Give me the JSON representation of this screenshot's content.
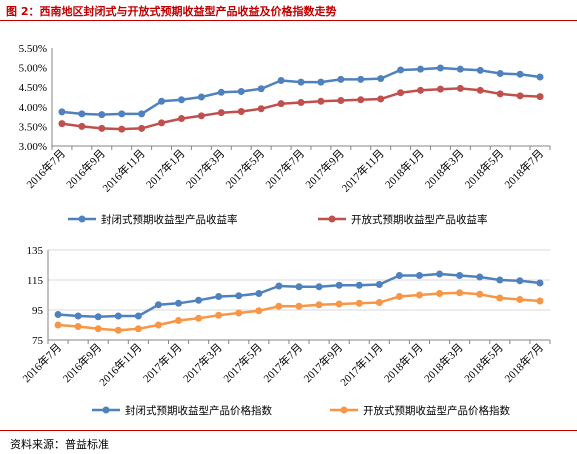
{
  "figure_title": "图 2：西南地区封闭式与开放式预期收益型产品收益及价格指数走势",
  "source": "资料来源：普益标准",
  "colors": {
    "blue": "#4f81bd",
    "red": "#c0504d",
    "orange": "#f79646",
    "rule": "#c00000"
  },
  "chart_data": [
    {
      "type": "line",
      "categories": [
        "2016年7月",
        "2016年8月",
        "2016年9月",
        "2016年10月",
        "2016年11月",
        "2016年12月",
        "2017年1月",
        "2017年2月",
        "2017年3月",
        "2017年4月",
        "2017年5月",
        "2017年6月",
        "2017年7月",
        "2017年8月",
        "2017年9月",
        "2017年10月",
        "2017年11月",
        "2017年12月",
        "2018年1月",
        "2018年2月",
        "2018年3月",
        "2018年4月",
        "2018年5月",
        "2018年6月",
        "2018年7月"
      ],
      "tick_labels": [
        "2016年7月",
        "2016年9月",
        "2016年11月",
        "2017年1月",
        "2017年3月",
        "2017年5月",
        "2017年7月",
        "2017年9月",
        "2017年11月",
        "2018年1月",
        "2018年3月",
        "2018年5月",
        "2018年7月"
      ],
      "ylim": [
        3.0,
        5.5
      ],
      "yticks": [
        "3.00%",
        "3.50%",
        "4.00%",
        "4.50%",
        "5.00%",
        "5.50%"
      ],
      "grid": false,
      "legend_position": "bottom",
      "series": [
        {
          "name": "封闭式预期收益型产品收益率",
          "color": "#4f81bd",
          "values": [
            3.87,
            3.82,
            3.8,
            3.82,
            3.82,
            4.14,
            4.18,
            4.25,
            4.37,
            4.39,
            4.46,
            4.67,
            4.63,
            4.63,
            4.7,
            4.7,
            4.72,
            4.94,
            4.96,
            4.99,
            4.96,
            4.93,
            4.85,
            4.83,
            4.76
          ]
        },
        {
          "name": "开放式预期收益型产品收益率",
          "color": "#c0504d",
          "values": [
            3.57,
            3.5,
            3.45,
            3.43,
            3.45,
            3.59,
            3.7,
            3.77,
            3.85,
            3.88,
            3.95,
            4.08,
            4.11,
            4.14,
            4.16,
            4.18,
            4.2,
            4.36,
            4.42,
            4.45,
            4.47,
            4.42,
            4.33,
            4.28,
            4.26
          ]
        }
      ]
    },
    {
      "type": "line",
      "categories": [
        "2016年7月",
        "2016年8月",
        "2016年9月",
        "2016年10月",
        "2016年11月",
        "2016年12月",
        "2017年1月",
        "2017年2月",
        "2017年3月",
        "2017年4月",
        "2017年5月",
        "2017年6月",
        "2017年7月",
        "2017年8月",
        "2017年9月",
        "2017年10月",
        "2017年11月",
        "2017年12月",
        "2018年1月",
        "2018年2月",
        "2018年3月",
        "2018年4月",
        "2018年5月",
        "2018年6月",
        "2018年7月"
      ],
      "tick_labels": [
        "2016年7月",
        "2016年9月",
        "2016年11月",
        "2017年1月",
        "2017年3月",
        "2017年5月",
        "2017年7月",
        "2017年9月",
        "2017年11月",
        "2018年1月",
        "2018年3月",
        "2018年5月",
        "2018年7月"
      ],
      "ylim": [
        75,
        135
      ],
      "yticks": [
        "75",
        "95",
        "115",
        "135"
      ],
      "grid": true,
      "legend_position": "bottom",
      "series": [
        {
          "name": "封闭式预期收益型产品价格指数",
          "color": "#4f81bd",
          "values": [
            92,
            91,
            90.5,
            91,
            91,
            98.5,
            99.5,
            101.5,
            104,
            104.5,
            106,
            111,
            110.5,
            110.5,
            111.5,
            111.5,
            112,
            118,
            118,
            119,
            118,
            117,
            115,
            114.5,
            113
          ]
        },
        {
          "name": "开放式预期收益型产品价格指数",
          "color": "#f79646",
          "values": [
            85,
            84,
            82.5,
            81.5,
            82.5,
            85,
            88,
            89.5,
            91.5,
            93,
            94.5,
            97.5,
            97.5,
            98.5,
            99,
            99.5,
            100,
            104,
            105,
            106,
            106.5,
            105.5,
            103,
            102,
            101
          ]
        }
      ]
    }
  ]
}
